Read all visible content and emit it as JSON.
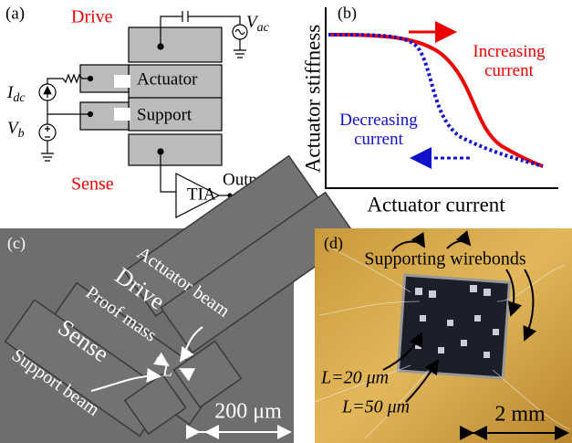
{
  "panel_a": {
    "label": "(a)",
    "drive": "Drive",
    "sense": "Sense",
    "actuator": "Actuator",
    "support": "Support",
    "tia": "TIA",
    "output": "Output",
    "vac": "V",
    "vac_sub": "ac",
    "idc": "I",
    "idc_sub": "dc",
    "vb": "V",
    "vb_sub": "b"
  },
  "panel_b": {
    "label": "(b)",
    "y_axis": "Actuator stiffness",
    "x_axis": "Actuator current",
    "increasing": [
      "Increasing",
      "current"
    ],
    "decreasing": [
      "Decreasing",
      "current"
    ]
  },
  "panel_c": {
    "label": "(c)",
    "actuator_beam": "Actuator beam",
    "drive": "Drive",
    "proof_mass": "Proof mass",
    "sense": "Sense",
    "support_beam": "Support beam",
    "gap": "L",
    "scale": "200 μm"
  },
  "panel_d": {
    "label": "(d)",
    "wirebonds": "Supporting wirebonds",
    "l20": "L=20 μm",
    "l50": "L=50 μm",
    "scale": "2 mm"
  }
}
